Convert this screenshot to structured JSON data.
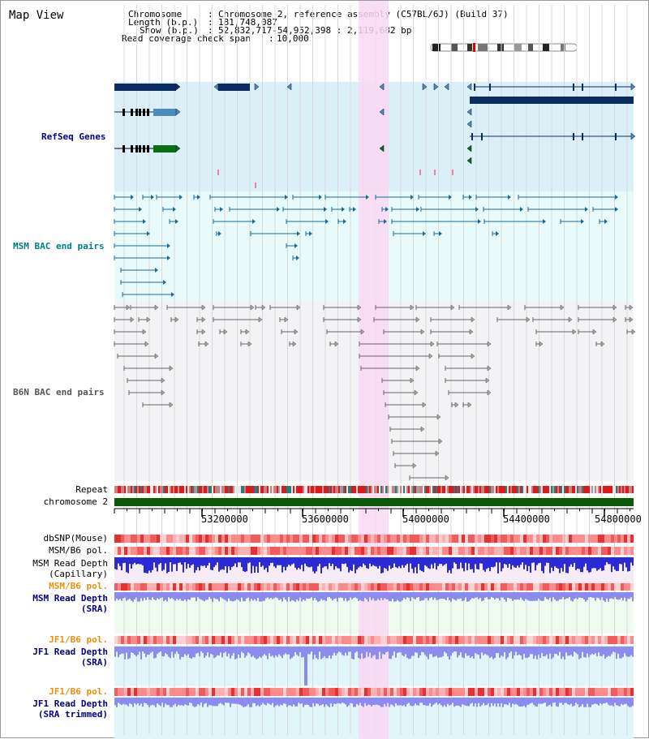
{
  "map_title": "Map View",
  "header": {
    "chromosome_label": "Chromosome",
    "chromosome_value": "Chromosome 2, reference assembly (C57BL/6J) (Build 37)",
    "length_label": "Length (b.p.)",
    "length_value": "181,748,087",
    "show_label": "Show (b.p.)",
    "show_value": "52,832,717-54,952,398 : 2,119,682 bp",
    "coverage_label": "Read coverage check span",
    "coverage_value": "10,000"
  },
  "tracks": {
    "refseq": "RefSeq Genes",
    "msm_bac": "MSM BAC end pairs",
    "b6n_bac": "B6N BAC end pairs",
    "repeat": "Repeat",
    "chromosome": "chromosome 2",
    "dbsnp": "dbSNP(Mouse)",
    "msm_b6_pol_1": "MSM/B6 pol.",
    "msm_read_depth_cap_1": "MSM Read Depth",
    "msm_read_depth_cap_2": "(Capillary)",
    "msm_b6_pol_2": "MSM/B6 pol.",
    "msm_read_depth_sra_1": "MSM Read Depth",
    "msm_read_depth_sra_2": "(SRA)",
    "jf1_b6_pol_1": "JF1/B6 pol.",
    "jf1_read_depth_sra_1": "JF1 Read Depth",
    "jf1_read_depth_sra_2": "(SRA)",
    "jf1_b6_pol_2": "JF1/B6 pol.",
    "jf1_read_depth_trim_1": "JF1 Read Depth",
    "jf1_read_depth_trim_2": "(SRA trimmed)"
  },
  "axis": {
    "ticks": [
      "53200000",
      "53600000",
      "54000000",
      "54400000",
      "54800000"
    ]
  },
  "colors": {
    "refseq_bg": "#dbeff9",
    "msm_bg": "#e8fafa",
    "b6n_bg": "#f3f3f5",
    "highlight": "#f9d8f3",
    "gene_dark": "#0b2c5f",
    "gene_mid": "#4a8db8",
    "gene_green": "#0c6e12",
    "msm_feature": "#1a6a9a",
    "b6n_feature": "#666666",
    "chromosome_bar": "#0a5a0a",
    "snp_red": "#f06464",
    "depth_blue": "#2a2ad8",
    "depth_light_blue": "#8c8cf0",
    "label_blue": "#000080",
    "label_teal": "#008080",
    "label_orange": "#e8900c"
  }
}
